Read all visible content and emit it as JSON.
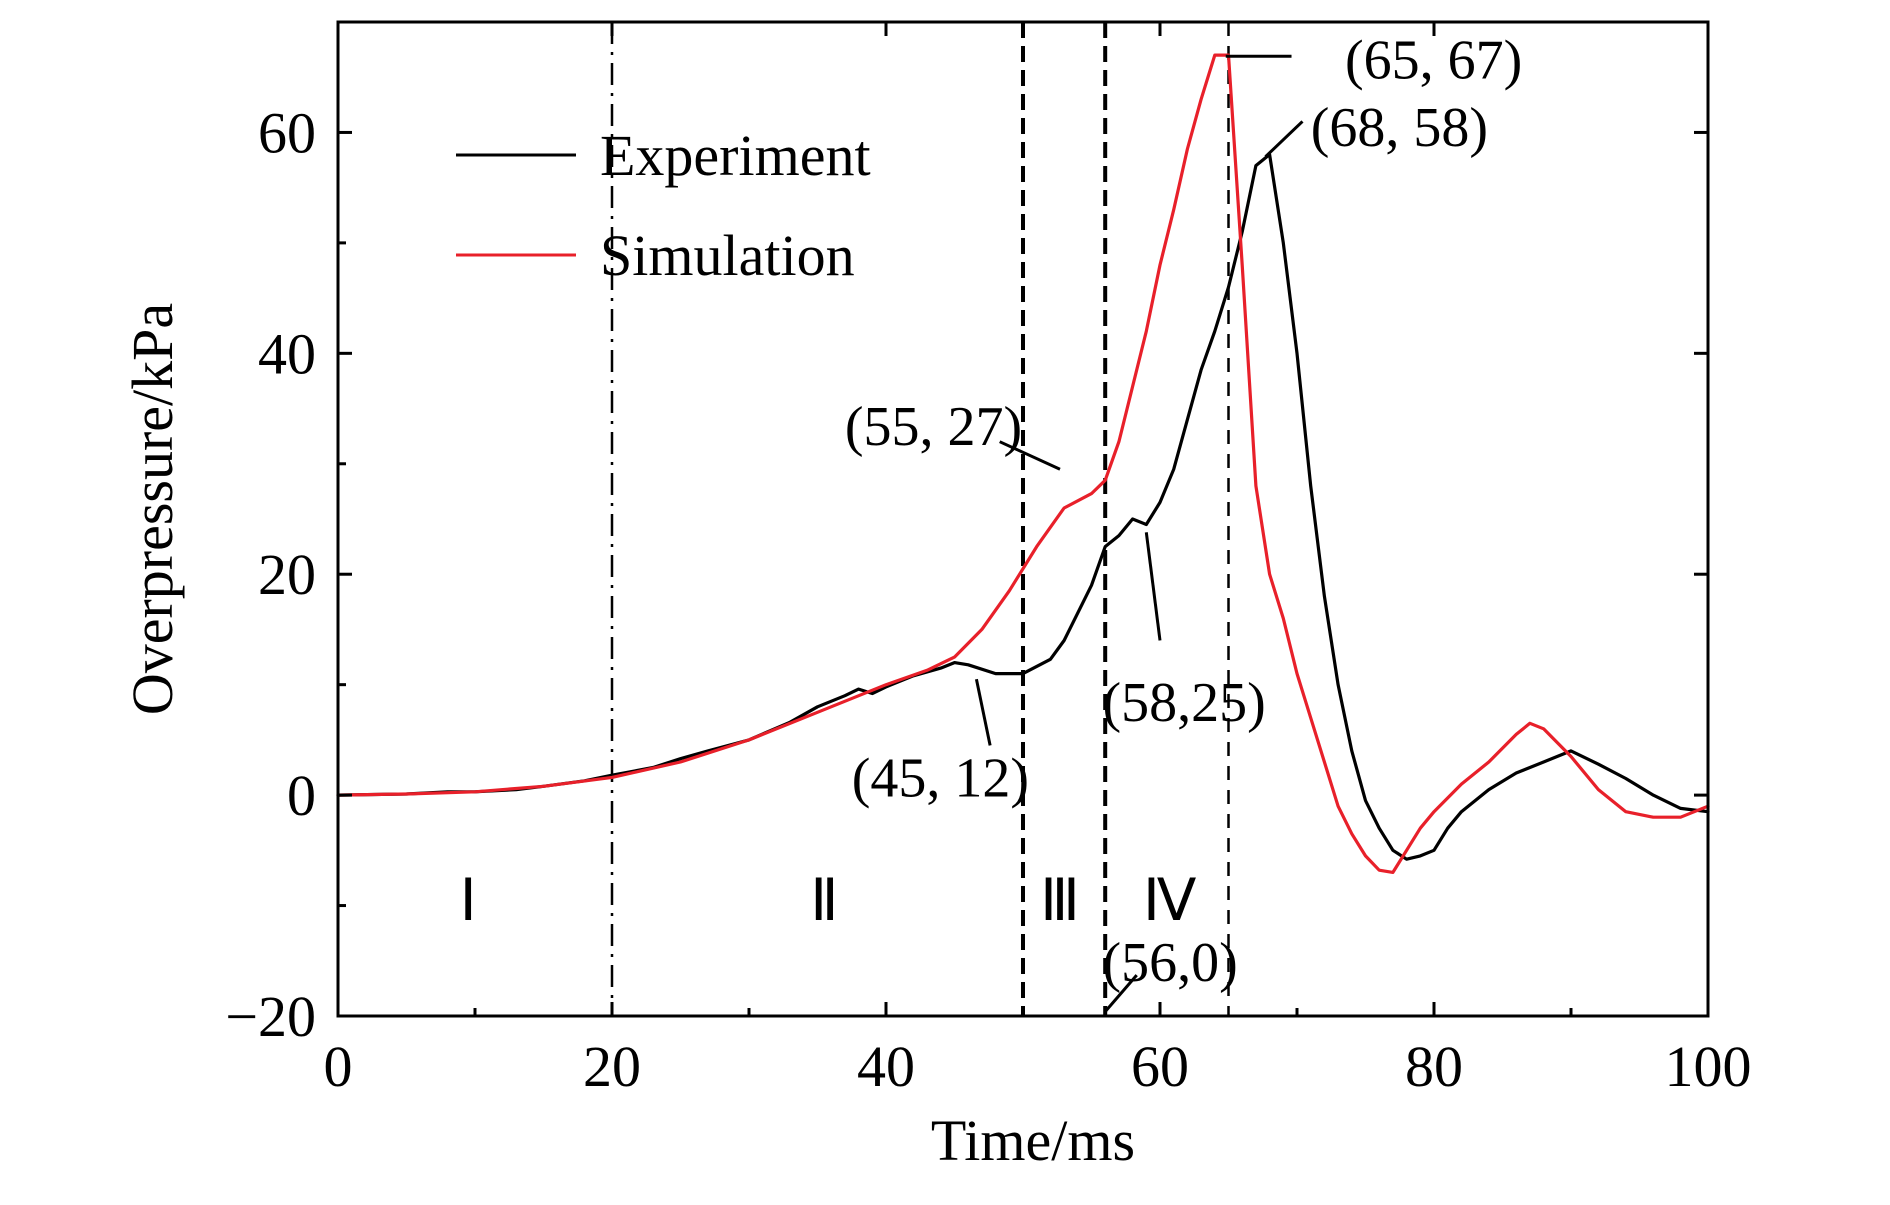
{
  "chart_data": {
    "type": "line",
    "xlabel": "Time/ms",
    "ylabel": "Overpressure/kPa",
    "xlim": [
      0,
      100
    ],
    "ylim": [
      -20,
      70
    ],
    "xticks": [
      0,
      20,
      40,
      60,
      80,
      100
    ],
    "yticks": [
      -20,
      0,
      20,
      40,
      60
    ],
    "xtick_labels": [
      "0",
      "20",
      "40",
      "60",
      "80",
      "100"
    ],
    "ytick_labels": [
      "−20",
      "0",
      "20",
      "40",
      "60"
    ],
    "grid": false,
    "legend_position": "top-left",
    "series": [
      {
        "name": "Experiment",
        "color": "#000000",
        "x": [
          0,
          5,
          8,
          10,
          13,
          15,
          18,
          20,
          23,
          25,
          27,
          30,
          33,
          35,
          37,
          38,
          39,
          40,
          42,
          44,
          45,
          46,
          48,
          50,
          52,
          53,
          55,
          56,
          57,
          58,
          59,
          60,
          61,
          62,
          63,
          64,
          65,
          66,
          67,
          68,
          69,
          70,
          71,
          72,
          73,
          74,
          75,
          76,
          77,
          78,
          79,
          80,
          81,
          82,
          84,
          86,
          88,
          90,
          92,
          94,
          96,
          98,
          100
        ],
        "y": [
          0,
          0.1,
          0.3,
          0.3,
          0.5,
          0.8,
          1.3,
          1.8,
          2.5,
          3.3,
          4.0,
          5.0,
          6.6,
          8.0,
          9.0,
          9.6,
          9.2,
          9.8,
          10.8,
          11.5,
          12.0,
          11.8,
          11.0,
          11.0,
          12.3,
          14.0,
          19.0,
          22.5,
          23.5,
          25.0,
          24.5,
          26.5,
          29.5,
          34.0,
          38.5,
          42.0,
          46.0,
          51.0,
          57.0,
          58.0,
          50.0,
          40.0,
          28.0,
          18.0,
          10.0,
          4.0,
          -0.5,
          -3.0,
          -5.0,
          -5.8,
          -5.5,
          -5.0,
          -3.0,
          -1.5,
          0.5,
          2.0,
          3.0,
          4.0,
          2.8,
          1.5,
          0.0,
          -1.2,
          -1.5
        ]
      },
      {
        "name": "Simulation",
        "color": "#e8202a",
        "x": [
          0,
          5,
          10,
          15,
          20,
          25,
          30,
          35,
          40,
          43,
          45,
          47,
          49,
          51,
          53,
          55,
          56,
          57,
          58,
          59,
          60,
          61,
          62,
          63,
          64,
          65,
          66,
          67,
          68,
          69,
          70,
          71,
          72,
          73,
          74,
          75,
          76,
          77,
          78,
          79,
          80,
          82,
          84,
          86,
          87,
          88,
          90,
          92,
          94,
          96,
          98,
          100
        ],
        "y": [
          0,
          0.1,
          0.3,
          0.8,
          1.6,
          3.0,
          5.0,
          7.5,
          10.0,
          11.3,
          12.5,
          15.0,
          18.5,
          22.5,
          26.0,
          27.3,
          28.5,
          32.0,
          37.0,
          42.0,
          48.0,
          53.0,
          58.5,
          63.0,
          67.0,
          67.0,
          48.0,
          28.0,
          20.0,
          16.0,
          11.0,
          7.0,
          3.0,
          -1.0,
          -3.5,
          -5.5,
          -6.8,
          -7.0,
          -5.0,
          -3.0,
          -1.5,
          1.0,
          3.0,
          5.5,
          6.5,
          6.0,
          3.5,
          0.5,
          -1.5,
          -2.0,
          -2.0,
          -1.0
        ]
      }
    ],
    "stage_dividers": [
      20,
      50,
      56,
      65
    ],
    "stages": [
      {
        "label": "Ⅰ",
        "x": 9.5,
        "y": -9.5
      },
      {
        "label": "Ⅱ",
        "x": 35.5,
        "y": -9.5
      },
      {
        "label": "Ⅲ",
        "x": 52.7,
        "y": -9.5
      },
      {
        "label": "Ⅳ",
        "x": 60.7,
        "y": -9.5
      }
    ],
    "annotations": [
      {
        "text": "(65, 67)",
        "point": [
          65,
          67
        ],
        "text_at": [
          73.5,
          66.7
        ],
        "anchor": "start",
        "leader": [
          [
            64.8,
            66.9
          ],
          [
            69.6,
            66.9
          ]
        ]
      },
      {
        "text": "(68, 58)",
        "point": [
          68,
          58
        ],
        "text_at": [
          71.0,
          60.6
        ],
        "anchor": "start",
        "leader": [
          [
            67.7,
            57.8
          ],
          [
            70.4,
            61.0
          ]
        ]
      },
      {
        "text": "(55, 27)",
        "point": [
          55,
          27
        ],
        "text_at": [
          37.0,
          33.5
        ],
        "anchor": "start",
        "leader": [
          [
            52.7,
            29.5
          ],
          [
            48.3,
            32.0
          ]
        ]
      },
      {
        "text": "(45, 12)",
        "point": [
          45,
          12
        ],
        "text_at": [
          37.5,
          1.7
        ],
        "anchor": "start",
        "leader": [
          [
            46.6,
            10.5
          ],
          [
            47.6,
            4.5
          ]
        ]
      },
      {
        "text": "(58,25)",
        "point": [
          58,
          25
        ],
        "text_at": [
          55.8,
          8.5
        ],
        "anchor": "start",
        "leader": [
          [
            59.0,
            23.8
          ],
          [
            60.0,
            14.0
          ]
        ]
      },
      {
        "text": "(56,0)",
        "point": [
          56,
          0
        ],
        "text_at": [
          55.8,
          -15.0
        ],
        "anchor": "start",
        "leader": [
          [
            56.0,
            -19.6
          ],
          [
            58.3,
            -16.3
          ]
        ]
      }
    ]
  }
}
